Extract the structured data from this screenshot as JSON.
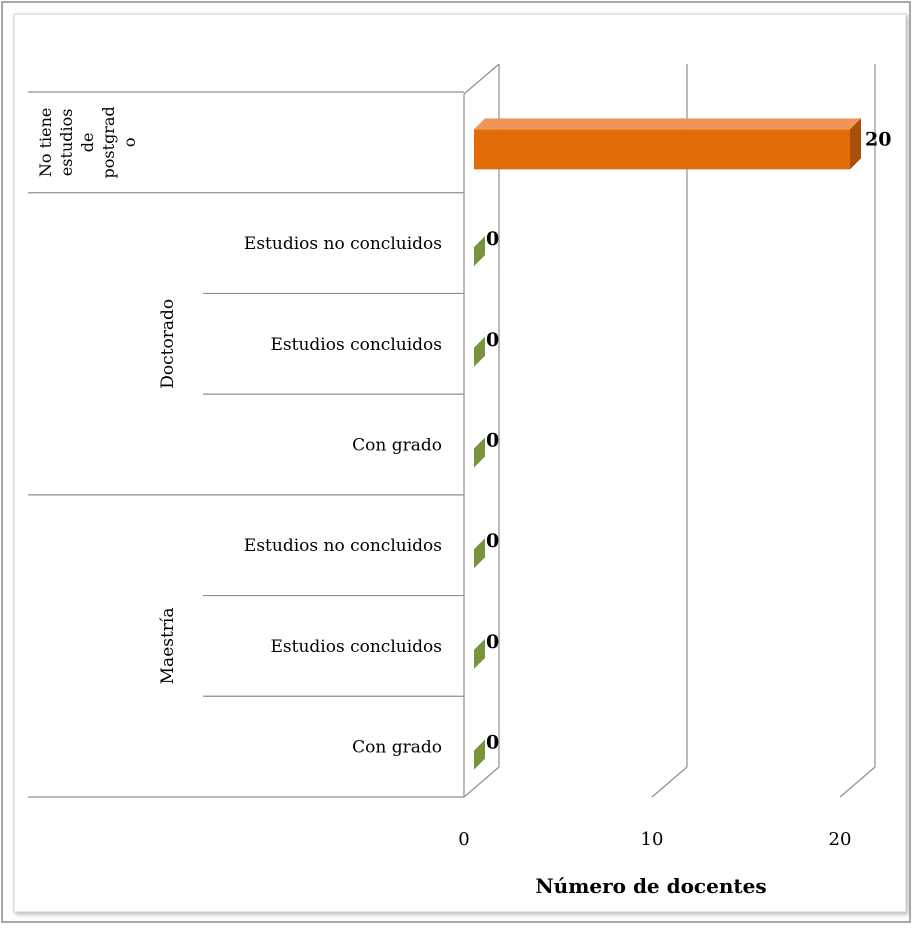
{
  "chart_data": {
    "type": "bar",
    "orientation": "horizontal",
    "three_d": true,
    "xlabel": "Número de docentes",
    "xlim": [
      0,
      20
    ],
    "xticks": [
      "0",
      "10",
      "20"
    ],
    "grid": true,
    "legend": "none",
    "groups": [
      {
        "label": "No tiene estudios de postgrado",
        "label_lines": [
          "No tiene",
          "estudios",
          "de",
          "postgrad",
          "o"
        ]
      },
      {
        "label": "Doctorado"
      },
      {
        "label": "Maestría"
      }
    ],
    "categories": [
      {
        "group": "No tiene estudios de postgrado",
        "label": ""
      },
      {
        "group": "Doctorado",
        "label": "Estudios no concluidos"
      },
      {
        "group": "Doctorado",
        "label": "Estudios concluidos"
      },
      {
        "group": "Doctorado",
        "label": "Con grado"
      },
      {
        "group": "Maestría",
        "label": "Estudios no concluidos"
      },
      {
        "group": "Maestría",
        "label": "Estudios concluidos"
      },
      {
        "group": "Maestría",
        "label": "Con grado"
      }
    ],
    "values": [
      20,
      0,
      0,
      0,
      0,
      0,
      0
    ],
    "data_labels": [
      "20",
      "0",
      "0",
      "0",
      "0",
      "0",
      "0"
    ],
    "bar_colors": [
      "#E36C0A",
      "#77933C",
      "#77933C",
      "#77933C",
      "#77933C",
      "#77933C",
      "#77933C"
    ]
  }
}
